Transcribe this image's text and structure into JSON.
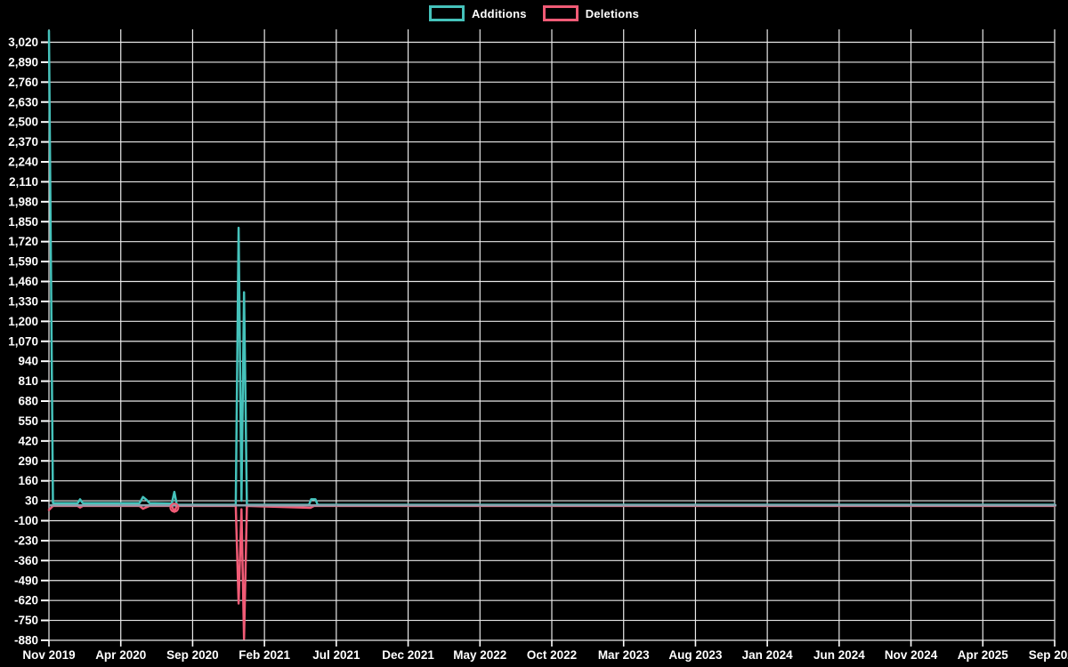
{
  "legend": {
    "items": [
      {
        "label": "Additions",
        "color": "#45c2bb"
      },
      {
        "label": "Deletions",
        "color": "#f15b76"
      }
    ]
  },
  "chart_data": {
    "type": "line",
    "title": "",
    "background": "#000000",
    "grid_color": "#e8e8e8",
    "tick_color": "#ffffff",
    "zero_line_color": "#8ba1ad",
    "x_axis": {
      "unit": "months since first tick",
      "range": [
        0,
        70
      ],
      "ticks": [
        {
          "t": 0,
          "label": "Nov 2019"
        },
        {
          "t": 5,
          "label": "Apr 2020"
        },
        {
          "t": 10,
          "label": "Sep 2020"
        },
        {
          "t": 15,
          "label": "Feb 2021"
        },
        {
          "t": 20,
          "label": "Jul 2021"
        },
        {
          "t": 25,
          "label": "Dec 2021"
        },
        {
          "t": 30,
          "label": "May 2022"
        },
        {
          "t": 35,
          "label": "Oct 2022"
        },
        {
          "t": 40,
          "label": "Mar 2023"
        },
        {
          "t": 45,
          "label": "Aug 2023"
        },
        {
          "t": 50,
          "label": "Jan 2024"
        },
        {
          "t": 55,
          "label": "Jun 2024"
        },
        {
          "t": 60,
          "label": "Nov 2024"
        },
        {
          "t": 65,
          "label": "Apr 2025"
        },
        {
          "t": 70,
          "label": "Sep 2025"
        }
      ]
    },
    "y_axis": {
      "range": [
        -880,
        3020
      ],
      "tick_step": 130,
      "ticks": [
        3020,
        2890,
        2760,
        2630,
        2500,
        2370,
        2240,
        2110,
        1980,
        1850,
        1720,
        1590,
        1460,
        1330,
        1200,
        1070,
        940,
        810,
        680,
        550,
        420,
        290,
        160,
        30,
        -100,
        -230,
        -360,
        -490,
        -620,
        -750,
        -880
      ]
    },
    "series": [
      {
        "name": "Additions",
        "color": "#45c2bb",
        "points": [
          [
            0,
            3095
          ],
          [
            0.28,
            15
          ],
          [
            2.0,
            15
          ],
          [
            2.17,
            40
          ],
          [
            2.35,
            15
          ],
          [
            6.3,
            15
          ],
          [
            6.55,
            55
          ],
          [
            6.8,
            35
          ],
          [
            7.0,
            15
          ],
          [
            8.55,
            12
          ],
          [
            8.73,
            88
          ],
          [
            8.9,
            4
          ],
          [
            13.0,
            4
          ],
          [
            13.2,
            1810
          ],
          [
            13.4,
            30
          ],
          [
            13.58,
            1390
          ],
          [
            13.78,
            4
          ],
          [
            18.1,
            4
          ],
          [
            18.25,
            40
          ],
          [
            18.55,
            40
          ],
          [
            18.7,
            4
          ],
          [
            70,
            4
          ]
        ]
      },
      {
        "name": "Deletions",
        "color": "#f15b76",
        "points": [
          [
            0,
            -30
          ],
          [
            0.28,
            -4
          ],
          [
            2.0,
            -4
          ],
          [
            2.17,
            -14
          ],
          [
            2.35,
            -4
          ],
          [
            6.3,
            -4
          ],
          [
            6.55,
            -22
          ],
          [
            7.0,
            -4
          ],
          [
            8.55,
            -4
          ],
          [
            8.73,
            -42
          ],
          [
            8.9,
            -4
          ],
          [
            13.0,
            -4
          ],
          [
            13.2,
            -640
          ],
          [
            13.4,
            -25
          ],
          [
            13.58,
            -870
          ],
          [
            13.78,
            -4
          ],
          [
            18.2,
            -16
          ],
          [
            18.45,
            -4
          ],
          [
            70,
            -4
          ]
        ],
        "marker": {
          "t": 8.73,
          "v": -15,
          "r": 4.5
        }
      }
    ]
  }
}
